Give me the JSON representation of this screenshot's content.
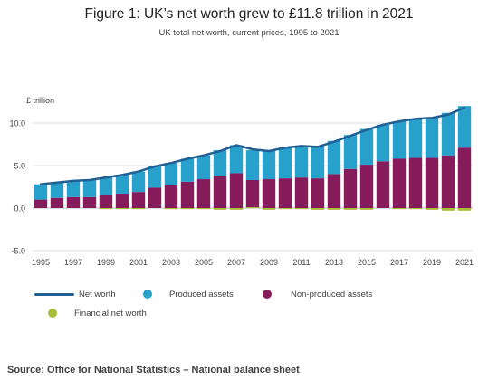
{
  "header": {
    "title": "Figure 1: UK’s net worth grew to £11.8 trillion in 2021",
    "subtitle": "UK total net worth, current prices, 1995 to 2021"
  },
  "source": "Source: Office for National Statistics – National balance sheet",
  "colors": {
    "net_worth": "#206095",
    "produced": "#27a0cc",
    "non_produced": "#871a5b",
    "financial": "#a8bd3a",
    "grid": "#dedede",
    "axis_text": "#414042"
  },
  "chart_data": {
    "type": "bar",
    "title": "Figure 1: UK’s net worth grew to £11.8 trillion in 2021",
    "subtitle": "UK total net worth, current prices, 1995 to 2021",
    "ylabel": "£ trillion",
    "xlabel": "",
    "ylim": [
      -5,
      12
    ],
    "yticks": [
      -5.0,
      0.0,
      5.0,
      10.0
    ],
    "ytick_labels": [
      "-5.0",
      "0.0",
      "5.0",
      "10.0"
    ],
    "xtick_labels": [
      "1995",
      "1997",
      "1999",
      "2001",
      "2003",
      "2005",
      "2007",
      "2009",
      "2011",
      "2013",
      "2015",
      "2017",
      "2019",
      "2021"
    ],
    "grid": true,
    "legend_position": "bottom",
    "stacked": true,
    "categories": [
      "1995",
      "1996",
      "1997",
      "1998",
      "1999",
      "2000",
      "2001",
      "2002",
      "2003",
      "2004",
      "2005",
      "2006",
      "2007",
      "2008",
      "2009",
      "2010",
      "2011",
      "2012",
      "2013",
      "2014",
      "2015",
      "2016",
      "2017",
      "2018",
      "2019",
      "2020",
      "2021"
    ],
    "series": [
      {
        "name": "Net worth",
        "kind": "line",
        "values": [
          2.8,
          3.0,
          3.2,
          3.3,
          3.6,
          3.9,
          4.3,
          4.9,
          5.3,
          5.8,
          6.2,
          6.7,
          7.4,
          6.9,
          6.7,
          7.1,
          7.3,
          7.2,
          7.8,
          8.5,
          9.2,
          9.8,
          10.2,
          10.5,
          10.6,
          11.0,
          11.8
        ]
      },
      {
        "name": "Produced assets",
        "kind": "bar",
        "values": [
          1.8,
          1.8,
          1.9,
          2.0,
          2.1,
          2.2,
          2.4,
          2.5,
          2.6,
          2.7,
          2.8,
          3.0,
          3.3,
          3.5,
          3.4,
          3.6,
          3.7,
          3.8,
          3.9,
          4.0,
          4.2,
          4.3,
          4.4,
          4.6,
          4.8,
          5.0,
          4.9
        ]
      },
      {
        "name": "Non-produced assets",
        "kind": "bar",
        "values": [
          1.0,
          1.2,
          1.3,
          1.3,
          1.5,
          1.7,
          1.9,
          2.4,
          2.7,
          3.1,
          3.4,
          3.8,
          4.1,
          3.3,
          3.4,
          3.5,
          3.6,
          3.5,
          4.0,
          4.6,
          5.1,
          5.5,
          5.8,
          5.9,
          5.9,
          6.2,
          7.1
        ]
      },
      {
        "name": "Financial net worth",
        "kind": "bar",
        "values": [
          0.0,
          0.0,
          0.0,
          0.0,
          -0.1,
          -0.1,
          -0.1,
          0.0,
          -0.1,
          -0.1,
          -0.1,
          -0.2,
          -0.2,
          0.1,
          -0.2,
          -0.1,
          -0.1,
          -0.2,
          -0.2,
          -0.2,
          -0.2,
          0.0,
          -0.1,
          -0.1,
          -0.2,
          -0.3,
          -0.3
        ]
      }
    ]
  }
}
